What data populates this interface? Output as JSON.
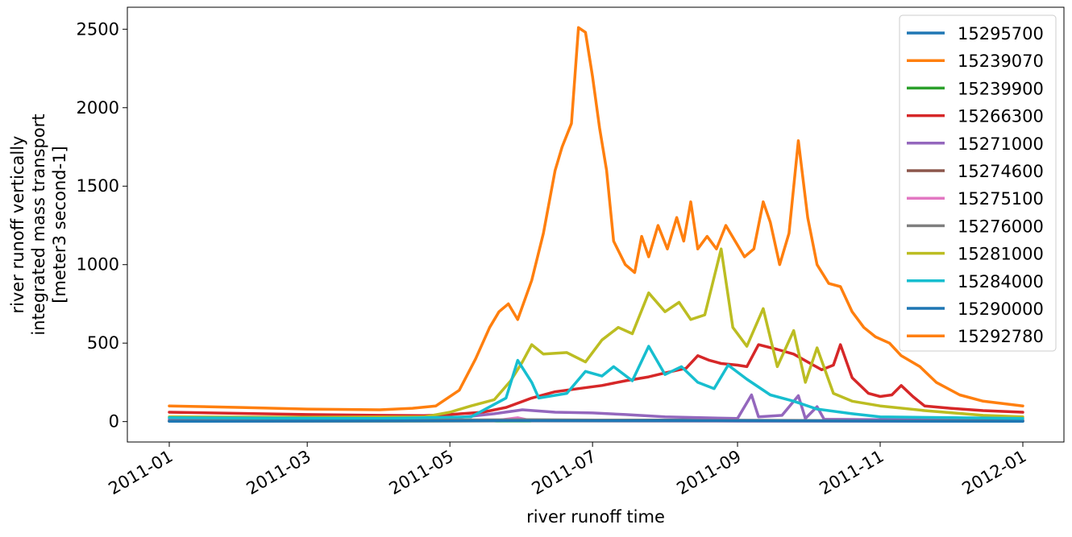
{
  "chart_data": {
    "type": "line",
    "xlabel": "river runoff time",
    "ylabel_lines": [
      "river runoff vertically",
      "integrated mass transport",
      "[meter3 second-1]"
    ],
    "xlim": [
      "2011-01-01",
      "2012-01-01"
    ],
    "ylim": [
      -130,
      2640
    ],
    "x_ticks": [
      {
        "date": "2011-01-01",
        "label": "2011-01"
      },
      {
        "date": "2011-03-01",
        "label": "2011-03"
      },
      {
        "date": "2011-05-01",
        "label": "2011-05"
      },
      {
        "date": "2011-07-01",
        "label": "2011-07"
      },
      {
        "date": "2011-09-01",
        "label": "2011-09"
      },
      {
        "date": "2011-11-01",
        "label": "2011-11"
      },
      {
        "date": "2012-01-01",
        "label": "2012-01"
      }
    ],
    "y_ticks": [
      0,
      500,
      1000,
      1500,
      2000,
      2500
    ],
    "legend_position": "top-right",
    "grid": false,
    "series": [
      {
        "name": "15295700",
        "color": "#1f77b4",
        "points": [
          [
            "2011-01-01",
            5
          ],
          [
            "2011-06-01",
            8
          ],
          [
            "2011-08-01",
            10
          ],
          [
            "2011-10-01",
            7
          ],
          [
            "2012-01-01",
            5
          ]
        ]
      },
      {
        "name": "15239070",
        "color": "#ff7f0e",
        "points": [
          [
            "2011-01-01",
            3
          ],
          [
            "2011-06-01",
            5
          ],
          [
            "2011-09-01",
            6
          ],
          [
            "2012-01-01",
            3
          ]
        ]
      },
      {
        "name": "15239900",
        "color": "#2ca02c",
        "points": [
          [
            "2011-01-01",
            2
          ],
          [
            "2011-06-01",
            4
          ],
          [
            "2011-09-01",
            4
          ],
          [
            "2012-01-01",
            2
          ]
        ]
      },
      {
        "name": "15266300",
        "color": "#d62728",
        "points": [
          [
            "2011-01-01",
            60
          ],
          [
            "2011-02-01",
            52
          ],
          [
            "2011-03-01",
            45
          ],
          [
            "2011-04-01",
            40
          ],
          [
            "2011-04-20",
            38
          ],
          [
            "2011-05-01",
            45
          ],
          [
            "2011-05-15",
            60
          ],
          [
            "2011-05-25",
            90
          ],
          [
            "2011-06-05",
            150
          ],
          [
            "2011-06-15",
            190
          ],
          [
            "2011-06-25",
            210
          ],
          [
            "2011-07-05",
            230
          ],
          [
            "2011-07-15",
            260
          ],
          [
            "2011-07-25",
            285
          ],
          [
            "2011-08-01",
            310
          ],
          [
            "2011-08-10",
            340
          ],
          [
            "2011-08-15",
            420
          ],
          [
            "2011-08-20",
            390
          ],
          [
            "2011-08-25",
            370
          ],
          [
            "2011-09-01",
            360
          ],
          [
            "2011-09-05",
            350
          ],
          [
            "2011-09-10",
            490
          ],
          [
            "2011-09-18",
            460
          ],
          [
            "2011-09-25",
            430
          ],
          [
            "2011-10-01",
            380
          ],
          [
            "2011-10-07",
            330
          ],
          [
            "2011-10-12",
            360
          ],
          [
            "2011-10-15",
            490
          ],
          [
            "2011-10-20",
            280
          ],
          [
            "2011-10-27",
            180
          ],
          [
            "2011-11-01",
            160
          ],
          [
            "2011-11-06",
            170
          ],
          [
            "2011-11-10",
            230
          ],
          [
            "2011-11-15",
            160
          ],
          [
            "2011-11-20",
            100
          ],
          [
            "2011-12-01",
            85
          ],
          [
            "2011-12-15",
            70
          ],
          [
            "2012-01-01",
            60
          ]
        ]
      },
      {
        "name": "15271000",
        "color": "#9467bd",
        "points": [
          [
            "2011-01-01",
            15
          ],
          [
            "2011-05-01",
            20
          ],
          [
            "2011-05-20",
            50
          ],
          [
            "2011-06-01",
            75
          ],
          [
            "2011-06-15",
            60
          ],
          [
            "2011-07-01",
            55
          ],
          [
            "2011-07-15",
            45
          ],
          [
            "2011-08-01",
            30
          ],
          [
            "2011-09-01",
            20
          ],
          [
            "2011-09-07",
            170
          ],
          [
            "2011-09-10",
            30
          ],
          [
            "2011-09-20",
            40
          ],
          [
            "2011-09-27",
            165
          ],
          [
            "2011-09-30",
            20
          ],
          [
            "2011-10-05",
            95
          ],
          [
            "2011-10-08",
            15
          ],
          [
            "2011-11-01",
            12
          ],
          [
            "2012-01-01",
            10
          ]
        ]
      },
      {
        "name": "15274600",
        "color": "#8c564b",
        "points": [
          [
            "2011-01-01",
            4
          ],
          [
            "2011-06-01",
            10
          ],
          [
            "2011-08-01",
            8
          ],
          [
            "2011-10-01",
            5
          ],
          [
            "2012-01-01",
            4
          ]
        ]
      },
      {
        "name": "15275100",
        "color": "#e377c2",
        "points": [
          [
            "2011-01-01",
            2
          ],
          [
            "2011-05-20",
            5
          ],
          [
            "2011-05-30",
            25
          ],
          [
            "2011-06-05",
            5
          ],
          [
            "2011-09-01",
            3
          ],
          [
            "2012-01-01",
            2
          ]
        ]
      },
      {
        "name": "15276000",
        "color": "#7f7f7f",
        "points": [
          [
            "2011-01-01",
            3
          ],
          [
            "2011-06-01",
            12
          ],
          [
            "2011-08-01",
            8
          ],
          [
            "2012-01-01",
            3
          ]
        ]
      },
      {
        "name": "15281000",
        "color": "#bcbd22",
        "points": [
          [
            "2011-01-01",
            30
          ],
          [
            "2011-03-01",
            28
          ],
          [
            "2011-04-20",
            30
          ],
          [
            "2011-05-01",
            60
          ],
          [
            "2011-05-10",
            100
          ],
          [
            "2011-05-20",
            140
          ],
          [
            "2011-05-27",
            260
          ],
          [
            "2011-06-01",
            380
          ],
          [
            "2011-06-05",
            490
          ],
          [
            "2011-06-10",
            430
          ],
          [
            "2011-06-20",
            440
          ],
          [
            "2011-06-28",
            380
          ],
          [
            "2011-07-05",
            520
          ],
          [
            "2011-07-12",
            600
          ],
          [
            "2011-07-18",
            560
          ],
          [
            "2011-07-25",
            820
          ],
          [
            "2011-08-01",
            700
          ],
          [
            "2011-08-07",
            760
          ],
          [
            "2011-08-12",
            650
          ],
          [
            "2011-08-18",
            680
          ],
          [
            "2011-08-25",
            1100
          ],
          [
            "2011-08-30",
            600
          ],
          [
            "2011-09-05",
            480
          ],
          [
            "2011-09-12",
            720
          ],
          [
            "2011-09-18",
            350
          ],
          [
            "2011-09-25",
            580
          ],
          [
            "2011-09-30",
            250
          ],
          [
            "2011-10-05",
            470
          ],
          [
            "2011-10-12",
            180
          ],
          [
            "2011-10-20",
            130
          ],
          [
            "2011-11-01",
            100
          ],
          [
            "2011-11-20",
            70
          ],
          [
            "2011-12-15",
            40
          ],
          [
            "2012-01-01",
            30
          ]
        ]
      },
      {
        "name": "15284000",
        "color": "#17becf",
        "points": [
          [
            "2011-01-01",
            25
          ],
          [
            "2011-04-01",
            20
          ],
          [
            "2011-05-10",
            30
          ],
          [
            "2011-05-25",
            150
          ],
          [
            "2011-05-30",
            390
          ],
          [
            "2011-06-05",
            250
          ],
          [
            "2011-06-08",
            150
          ],
          [
            "2011-06-20",
            180
          ],
          [
            "2011-06-28",
            320
          ],
          [
            "2011-07-05",
            290
          ],
          [
            "2011-07-10",
            350
          ],
          [
            "2011-07-18",
            260
          ],
          [
            "2011-07-25",
            480
          ],
          [
            "2011-08-01",
            300
          ],
          [
            "2011-08-08",
            350
          ],
          [
            "2011-08-15",
            250
          ],
          [
            "2011-08-22",
            210
          ],
          [
            "2011-08-28",
            360
          ],
          [
            "2011-09-05",
            270
          ],
          [
            "2011-09-15",
            170
          ],
          [
            "2011-09-25",
            130
          ],
          [
            "2011-10-05",
            80
          ],
          [
            "2011-10-20",
            50
          ],
          [
            "2011-11-01",
            30
          ],
          [
            "2011-12-01",
            25
          ],
          [
            "2012-01-01",
            20
          ]
        ]
      },
      {
        "name": "15290000",
        "color": "#1f77b4",
        "points": [
          [
            "2011-01-01",
            2
          ],
          [
            "2011-06-01",
            6
          ],
          [
            "2011-09-01",
            5
          ],
          [
            "2012-01-01",
            2
          ]
        ]
      },
      {
        "name": "15292780",
        "color": "#ff7f0e",
        "points": [
          [
            "2011-01-01",
            100
          ],
          [
            "2011-02-01",
            90
          ],
          [
            "2011-03-01",
            80
          ],
          [
            "2011-04-01",
            75
          ],
          [
            "2011-04-15",
            85
          ],
          [
            "2011-04-25",
            100
          ],
          [
            "2011-05-05",
            200
          ],
          [
            "2011-05-12",
            400
          ],
          [
            "2011-05-18",
            600
          ],
          [
            "2011-05-22",
            700
          ],
          [
            "2011-05-26",
            750
          ],
          [
            "2011-05-30",
            650
          ],
          [
            "2011-06-05",
            900
          ],
          [
            "2011-06-10",
            1200
          ],
          [
            "2011-06-15",
            1600
          ],
          [
            "2011-06-18",
            1750
          ],
          [
            "2011-06-22",
            1900
          ],
          [
            "2011-06-25",
            2510
          ],
          [
            "2011-06-28",
            2480
          ],
          [
            "2011-07-01",
            2200
          ],
          [
            "2011-07-04",
            1870
          ],
          [
            "2011-07-07",
            1600
          ],
          [
            "2011-07-10",
            1150
          ],
          [
            "2011-07-15",
            1000
          ],
          [
            "2011-07-19",
            950
          ],
          [
            "2011-07-22",
            1180
          ],
          [
            "2011-07-25",
            1050
          ],
          [
            "2011-07-29",
            1250
          ],
          [
            "2011-08-02",
            1100
          ],
          [
            "2011-08-06",
            1300
          ],
          [
            "2011-08-09",
            1150
          ],
          [
            "2011-08-12",
            1400
          ],
          [
            "2011-08-15",
            1100
          ],
          [
            "2011-08-19",
            1180
          ],
          [
            "2011-08-23",
            1100
          ],
          [
            "2011-08-27",
            1250
          ],
          [
            "2011-08-31",
            1150
          ],
          [
            "2011-09-04",
            1050
          ],
          [
            "2011-09-08",
            1100
          ],
          [
            "2011-09-12",
            1400
          ],
          [
            "2011-09-15",
            1270
          ],
          [
            "2011-09-19",
            1000
          ],
          [
            "2011-09-23",
            1200
          ],
          [
            "2011-09-27",
            1790
          ],
          [
            "2011-10-01",
            1300
          ],
          [
            "2011-10-05",
            1000
          ],
          [
            "2011-10-10",
            880
          ],
          [
            "2011-10-15",
            860
          ],
          [
            "2011-10-20",
            700
          ],
          [
            "2011-10-25",
            600
          ],
          [
            "2011-10-30",
            540
          ],
          [
            "2011-11-05",
            500
          ],
          [
            "2011-11-10",
            420
          ],
          [
            "2011-11-18",
            350
          ],
          [
            "2011-11-25",
            250
          ],
          [
            "2011-12-05",
            170
          ],
          [
            "2011-12-15",
            130
          ],
          [
            "2012-01-01",
            100
          ]
        ]
      }
    ]
  }
}
